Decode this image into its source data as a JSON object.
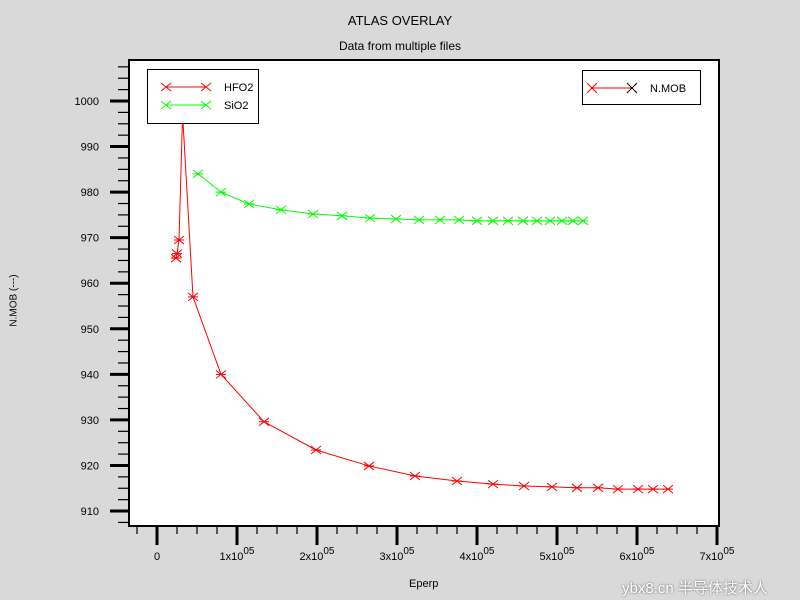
{
  "chart_data": {
    "type": "line",
    "title": "ATLAS OVERLAY",
    "subtitle": "Data from multiple files",
    "xlabel": "Eperp",
    "ylabel": "N.MOB (---)",
    "xlim": [
      -15000,
      700000
    ],
    "ylim": [
      906,
      1010
    ],
    "x_ticks": [
      0,
      100000,
      200000,
      300000,
      400000,
      500000,
      600000,
      700000
    ],
    "x_tick_labels": [
      {
        "m": "0",
        "e": ""
      },
      {
        "m": "1x10",
        "e": "05"
      },
      {
        "m": "2x10",
        "e": "05"
      },
      {
        "m": "3x10",
        "e": "05"
      },
      {
        "m": "4x10",
        "e": "05"
      },
      {
        "m": "5x10",
        "e": "05"
      },
      {
        "m": "6x10",
        "e": "05"
      },
      {
        "m": "7x10",
        "e": "05"
      }
    ],
    "y_ticks": [
      910,
      920,
      930,
      940,
      950,
      960,
      970,
      980,
      990,
      1000
    ],
    "grid": false,
    "series": [
      {
        "name": "HFO2",
        "color": "#ff0000",
        "x": [
          23750,
          25000,
          27500,
          32000,
          45000,
          80000,
          133750,
          198750,
          265000,
          322500,
          375000,
          420000,
          458750,
          493750,
          525000,
          551250,
          576250,
          601250,
          620000,
          638750
        ],
        "y": [
          965.5,
          966.5,
          969.5,
          997,
          957,
          940,
          929.6,
          923.4,
          919.9,
          917.7,
          916.6,
          915.9,
          915.5,
          915.3,
          915.1,
          915.1,
          914.8,
          914.8,
          914.8,
          914.8
        ]
      },
      {
        "name": "SiO2",
        "color": "#00ff00",
        "x": [
          51250,
          80000,
          115000,
          155000,
          195000,
          231250,
          266250,
          298750,
          327500,
          353750,
          377500,
          400000,
          420000,
          438750,
          457500,
          475000,
          491250,
          506250,
          520000,
          532500
        ],
        "y": [
          984,
          980,
          977.4,
          976.1,
          975.2,
          974.8,
          974.3,
          974.1,
          973.9,
          973.9,
          973.9,
          973.7,
          973.7,
          973.7,
          973.7,
          973.7,
          973.7,
          973.7,
          973.7,
          973.7
        ]
      }
    ],
    "legend": {
      "placement": "top-left",
      "entries": [
        "HFO2",
        "SiO2"
      ]
    },
    "legend2": {
      "placement": "top-right",
      "entries": [
        "N.MOB"
      ],
      "color": "#ff0000"
    }
  },
  "watermark": "ybx8.cn 半导体技术人"
}
